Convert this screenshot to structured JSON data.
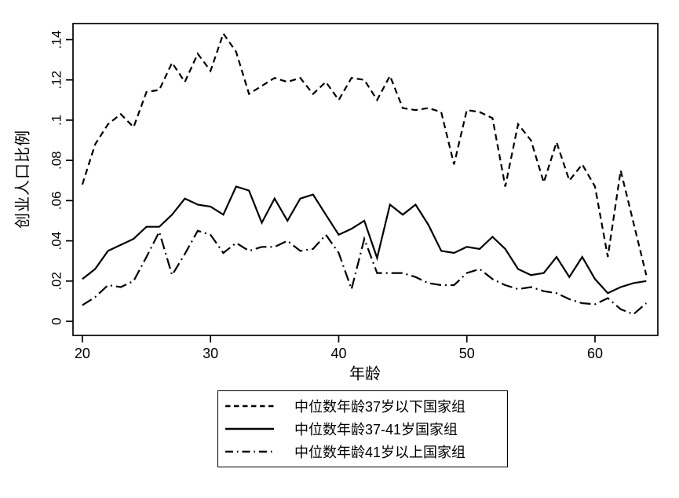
{
  "chart_data": {
    "type": "line",
    "title": "",
    "xlabel": "年龄",
    "ylabel": "创业人口比例",
    "x": [
      20,
      21,
      22,
      23,
      24,
      25,
      26,
      27,
      28,
      29,
      30,
      31,
      32,
      33,
      34,
      35,
      36,
      37,
      38,
      39,
      40,
      41,
      42,
      43,
      44,
      45,
      46,
      47,
      48,
      49,
      50,
      51,
      52,
      53,
      54,
      55,
      56,
      57,
      58,
      59,
      60,
      61,
      62,
      63,
      64
    ],
    "series": [
      {
        "name": "中位数年龄37岁以下国家组",
        "style": "dashed",
        "values": [
          0.068,
          0.088,
          0.098,
          0.103,
          0.0965,
          0.114,
          0.115,
          0.1285,
          0.119,
          0.133,
          0.1245,
          0.143,
          0.134,
          0.113,
          0.117,
          0.121,
          0.119,
          0.121,
          0.113,
          0.119,
          0.11,
          0.121,
          0.12,
          0.11,
          0.122,
          0.106,
          0.105,
          0.106,
          0.104,
          0.078,
          0.105,
          0.104,
          0.101,
          0.067,
          0.098,
          0.09,
          0.069,
          0.089,
          0.07,
          0.078,
          0.067,
          0.032,
          0.075,
          0.049,
          0.023
        ]
      },
      {
        "name": "中位数年龄37-41岁国家组",
        "style": "solid",
        "values": [
          0.021,
          0.026,
          0.035,
          0.038,
          0.041,
          0.047,
          0.047,
          0.053,
          0.061,
          0.058,
          0.057,
          0.053,
          0.067,
          0.065,
          0.049,
          0.061,
          0.05,
          0.061,
          0.063,
          0.053,
          0.043,
          0.046,
          0.05,
          0.0315,
          0.058,
          0.053,
          0.058,
          0.048,
          0.035,
          0.034,
          0.037,
          0.036,
          0.042,
          0.036,
          0.026,
          0.023,
          0.024,
          0.032,
          0.022,
          0.032,
          0.021,
          0.014,
          0.017,
          0.019,
          0.02
        ]
      },
      {
        "name": "中位数年龄41岁以上国家组",
        "style": "dashdot",
        "values": [
          0.008,
          0.012,
          0.018,
          0.017,
          0.02,
          0.032,
          0.0445,
          0.023,
          0.0335,
          0.045,
          0.043,
          0.034,
          0.039,
          0.035,
          0.037,
          0.037,
          0.04,
          0.035,
          0.036,
          0.043,
          0.034,
          0.016,
          0.041,
          0.024,
          0.024,
          0.024,
          0.022,
          0.019,
          0.018,
          0.018,
          0.024,
          0.026,
          0.021,
          0.018,
          0.016,
          0.017,
          0.015,
          0.014,
          0.011,
          0.009,
          0.0085,
          0.0115,
          0.006,
          0.0035,
          0.009
        ]
      }
    ],
    "x_ticks": {
      "values": [
        20,
        30,
        40,
        50,
        60
      ],
      "labels": [
        "20",
        "30",
        "40",
        "50",
        "60"
      ]
    },
    "y_ticks": {
      "values": [
        0,
        0.02,
        0.04,
        0.06,
        0.08,
        0.1,
        0.12,
        0.14
      ],
      "labels": [
        "0",
        ".02",
        ".04",
        ".06",
        ".08",
        ".1",
        ".12",
        ".14"
      ]
    },
    "xlim": [
      19.27,
      64.9
    ],
    "ylim": [
      -0.007,
      0.148
    ],
    "grid": false,
    "legend_position": "bottom-center",
    "line_color": "#000000",
    "background": "#ffffff"
  }
}
